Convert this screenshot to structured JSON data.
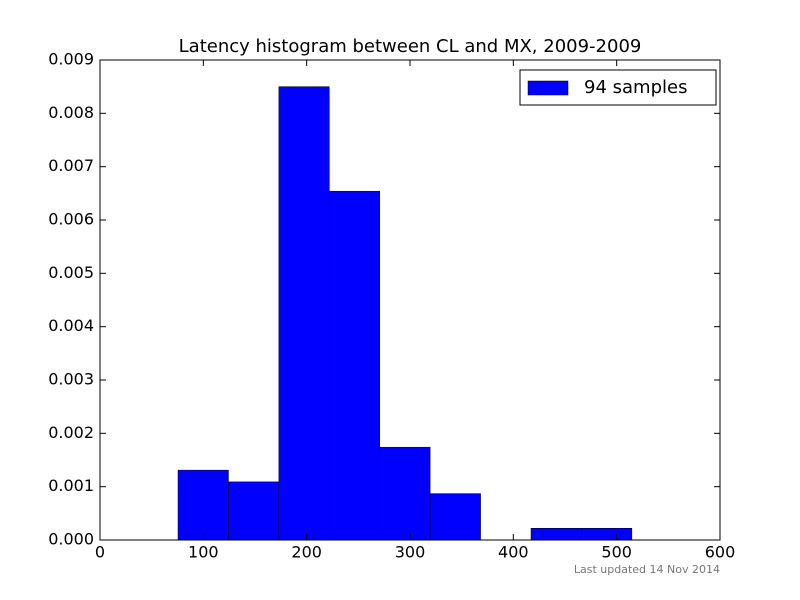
{
  "chart_data": {
    "type": "histogram",
    "title": "Latency histogram between CL and MX, 2009-2009",
    "bins": [
      75.5,
      124.3,
      173.1,
      221.9,
      270.7,
      319.5,
      368.3,
      417.1,
      465.9,
      514.7
    ],
    "series": [
      {
        "name": "94 samples",
        "color": "#0000ff",
        "values": [
          0.00131,
          0.00109,
          0.0085,
          0.00654,
          0.00174,
          0.00087,
          0,
          0.00022,
          0.00022
        ]
      }
    ],
    "xlim": [
      0,
      600
    ],
    "xticks": [
      0,
      100,
      200,
      300,
      400,
      500,
      600
    ],
    "ylim": [
      0,
      0.009
    ],
    "yticks": [
      {
        "value": 0,
        "label": "0.000"
      },
      {
        "value": 0.001,
        "label": "0.001"
      },
      {
        "value": 0.002,
        "label": "0.002"
      },
      {
        "value": 0.003,
        "label": "0.003"
      },
      {
        "value": 0.004,
        "label": "0.004"
      },
      {
        "value": 0.005,
        "label": "0.005"
      },
      {
        "value": 0.006,
        "label": "0.006"
      },
      {
        "value": 0.007,
        "label": "0.007"
      },
      {
        "value": 0.008,
        "label": "0.008"
      },
      {
        "value": 0.009,
        "label": "0.009"
      }
    ],
    "legend": "upper right",
    "footer": "Last updated 14 Nov 2014"
  }
}
